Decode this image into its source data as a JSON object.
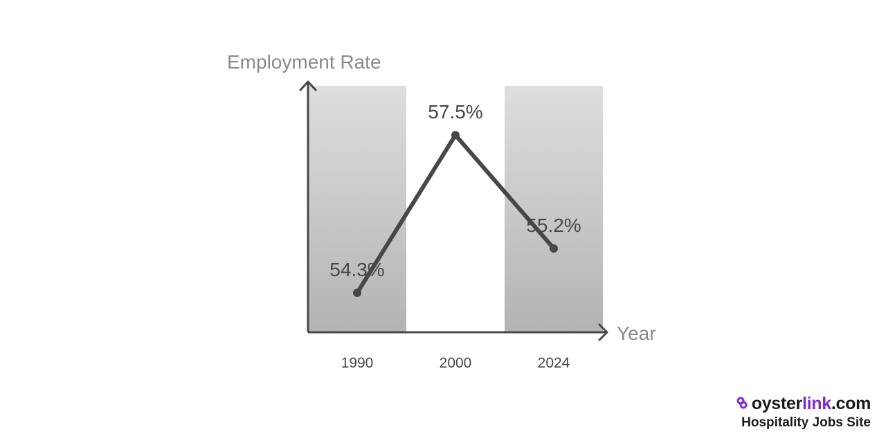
{
  "chart_data": {
    "type": "line",
    "title": "",
    "ylabel": "Employment Rate",
    "xlabel": "Year",
    "categories": [
      "1990",
      "2000",
      "2024"
    ],
    "values": [
      54.3,
      57.5,
      55.2
    ],
    "value_labels": [
      "54.3%",
      "57.5%",
      "55.2%"
    ],
    "ylim": [
      53.5,
      58.5
    ],
    "band_shading": [
      true,
      false,
      true
    ],
    "colors": {
      "line": "#474747",
      "axis": "#474747",
      "band_top": "#dedede",
      "band_bottom": "#b3b3b3",
      "axis_label": "#8a8a8a",
      "tick_label": "#474747"
    },
    "grid": false,
    "legend": "none"
  },
  "brand": {
    "name_part1": "oyster",
    "name_part2": "link",
    "name_part3": ".com",
    "tagline": "Hospitality Jobs Site",
    "accent_color": "#7c2bd6",
    "icon": "link-icon"
  }
}
